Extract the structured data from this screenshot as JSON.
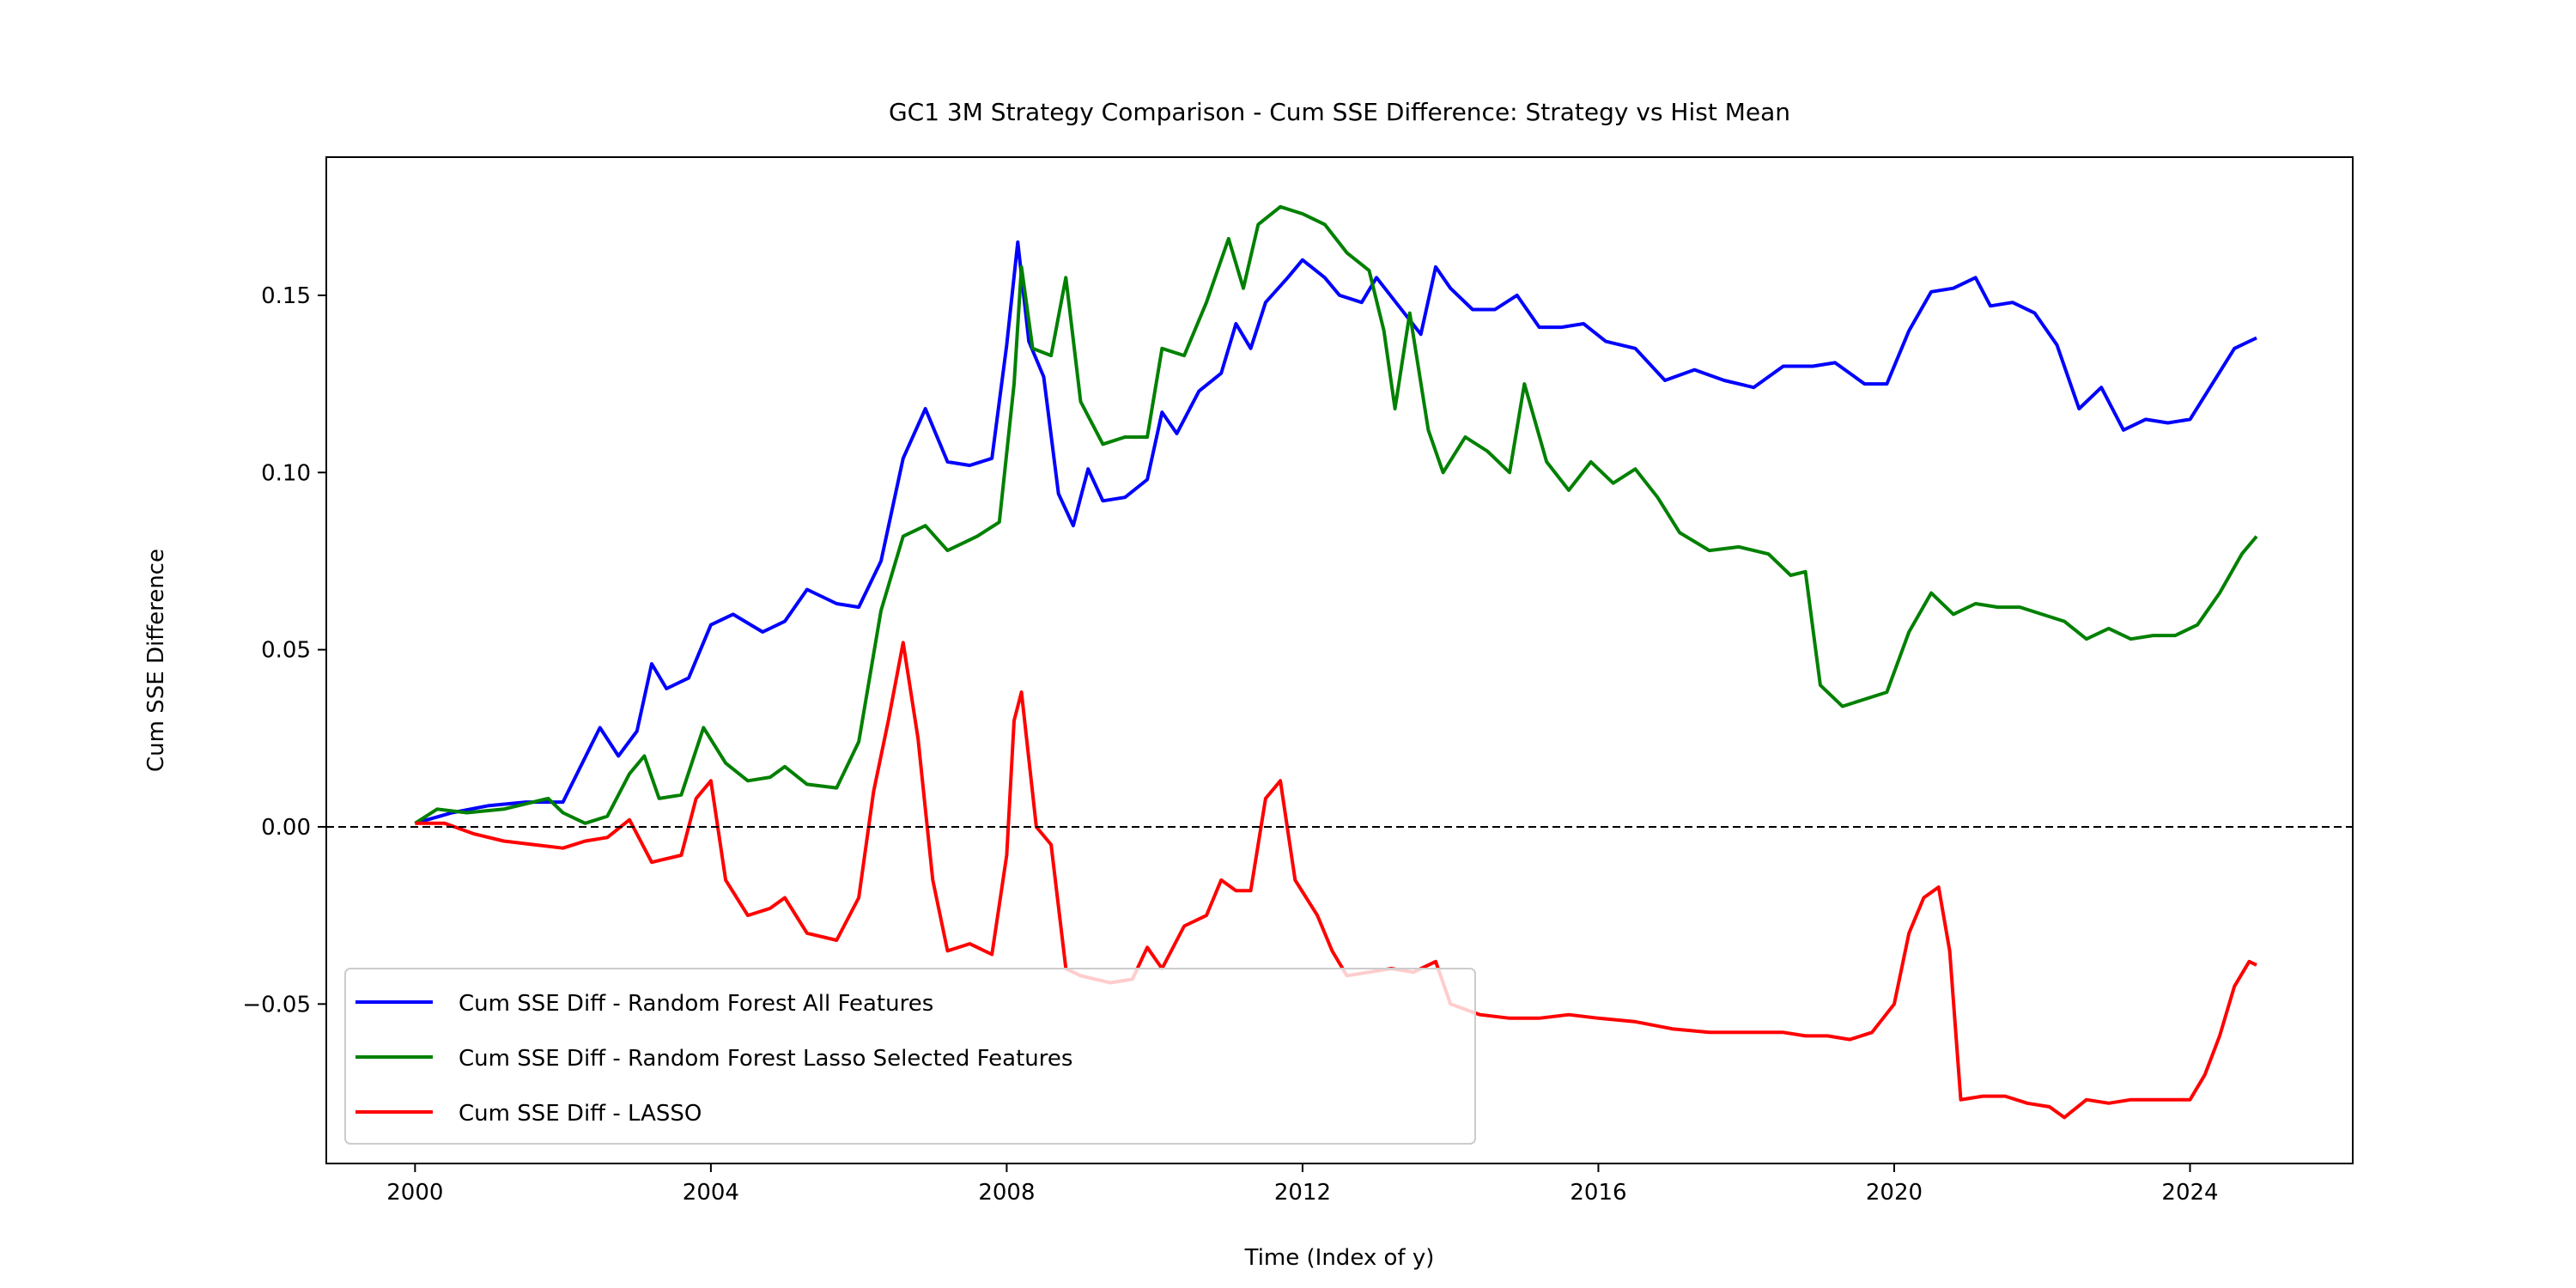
{
  "chart_data": {
    "type": "line",
    "title": "GC1 3M Strategy Comparison - Cum SSE Difference: Strategy vs Hist Mean",
    "xlabel": "Time (Index of y)",
    "ylabel": "Cum SSE Difference",
    "xlim": [
      1998.8,
      2026.2
    ],
    "ylim": [
      -0.095,
      0.189
    ],
    "x_ticks": [
      2000,
      2004,
      2008,
      2012,
      2016,
      2020,
      2024
    ],
    "y_ticks": [
      -0.05,
      0.0,
      0.05,
      0.1,
      0.15
    ],
    "y_tick_labels": [
      "−0.05",
      "0.00",
      "0.05",
      "0.10",
      "0.15"
    ],
    "reference_line": {
      "y": 0.0,
      "style": "dashed",
      "color": "#000000"
    },
    "grid": false,
    "legend_position": "lower-left",
    "series": [
      {
        "name": "Cum SSE Diff - Random Forest All Features",
        "color": "#0000ff",
        "points": [
          [
            2000.0,
            0.001
          ],
          [
            2000.5,
            0.004
          ],
          [
            2001.0,
            0.006
          ],
          [
            2001.5,
            0.007
          ],
          [
            2002.0,
            0.007
          ],
          [
            2002.5,
            0.028
          ],
          [
            2002.75,
            0.02
          ],
          [
            2003.0,
            0.027
          ],
          [
            2003.2,
            0.046
          ],
          [
            2003.4,
            0.039
          ],
          [
            2003.7,
            0.042
          ],
          [
            2004.0,
            0.057
          ],
          [
            2004.3,
            0.06
          ],
          [
            2004.7,
            0.055
          ],
          [
            2005.0,
            0.058
          ],
          [
            2005.3,
            0.067
          ],
          [
            2005.7,
            0.063
          ],
          [
            2006.0,
            0.062
          ],
          [
            2006.3,
            0.075
          ],
          [
            2006.6,
            0.104
          ],
          [
            2006.9,
            0.118
          ],
          [
            2007.2,
            0.103
          ],
          [
            2007.5,
            0.102
          ],
          [
            2007.8,
            0.104
          ],
          [
            2008.0,
            0.136
          ],
          [
            2008.15,
            0.165
          ],
          [
            2008.3,
            0.137
          ],
          [
            2008.5,
            0.127
          ],
          [
            2008.7,
            0.094
          ],
          [
            2008.9,
            0.085
          ],
          [
            2009.1,
            0.101
          ],
          [
            2009.3,
            0.092
          ],
          [
            2009.6,
            0.093
          ],
          [
            2009.9,
            0.098
          ],
          [
            2010.1,
            0.117
          ],
          [
            2010.3,
            0.111
          ],
          [
            2010.6,
            0.123
          ],
          [
            2010.9,
            0.128
          ],
          [
            2011.1,
            0.142
          ],
          [
            2011.3,
            0.135
          ],
          [
            2011.5,
            0.148
          ],
          [
            2011.8,
            0.155
          ],
          [
            2012.0,
            0.16
          ],
          [
            2012.3,
            0.155
          ],
          [
            2012.5,
            0.15
          ],
          [
            2012.8,
            0.148
          ],
          [
            2013.0,
            0.155
          ],
          [
            2013.3,
            0.147
          ],
          [
            2013.6,
            0.139
          ],
          [
            2013.8,
            0.158
          ],
          [
            2014.0,
            0.152
          ],
          [
            2014.3,
            0.146
          ],
          [
            2014.6,
            0.146
          ],
          [
            2014.9,
            0.15
          ],
          [
            2015.2,
            0.141
          ],
          [
            2015.5,
            0.141
          ],
          [
            2015.8,
            0.142
          ],
          [
            2016.1,
            0.137
          ],
          [
            2016.5,
            0.135
          ],
          [
            2016.9,
            0.126
          ],
          [
            2017.3,
            0.129
          ],
          [
            2017.7,
            0.126
          ],
          [
            2018.1,
            0.124
          ],
          [
            2018.5,
            0.13
          ],
          [
            2018.9,
            0.13
          ],
          [
            2019.2,
            0.131
          ],
          [
            2019.6,
            0.125
          ],
          [
            2019.9,
            0.125
          ],
          [
            2020.2,
            0.14
          ],
          [
            2020.5,
            0.151
          ],
          [
            2020.8,
            0.152
          ],
          [
            2021.1,
            0.155
          ],
          [
            2021.3,
            0.147
          ],
          [
            2021.6,
            0.148
          ],
          [
            2021.9,
            0.145
          ],
          [
            2022.2,
            0.136
          ],
          [
            2022.5,
            0.118
          ],
          [
            2022.8,
            0.124
          ],
          [
            2023.1,
            0.112
          ],
          [
            2023.4,
            0.115
          ],
          [
            2023.7,
            0.114
          ],
          [
            2024.0,
            0.115
          ],
          [
            2024.3,
            0.125
          ],
          [
            2024.6,
            0.135
          ],
          [
            2024.9,
            0.138
          ]
        ]
      },
      {
        "name": "Cum SSE Diff - Random Forest Lasso Selected Features",
        "color": "#008000",
        "points": [
          [
            2000.0,
            0.001
          ],
          [
            2000.3,
            0.005
          ],
          [
            2000.7,
            0.004
          ],
          [
            2001.2,
            0.005
          ],
          [
            2001.8,
            0.008
          ],
          [
            2002.0,
            0.004
          ],
          [
            2002.3,
            0.001
          ],
          [
            2002.6,
            0.003
          ],
          [
            2002.9,
            0.015
          ],
          [
            2003.1,
            0.02
          ],
          [
            2003.3,
            0.008
          ],
          [
            2003.6,
            0.009
          ],
          [
            2003.9,
            0.028
          ],
          [
            2004.2,
            0.018
          ],
          [
            2004.5,
            0.013
          ],
          [
            2004.8,
            0.014
          ],
          [
            2005.0,
            0.017
          ],
          [
            2005.3,
            0.012
          ],
          [
            2005.7,
            0.011
          ],
          [
            2006.0,
            0.024
          ],
          [
            2006.3,
            0.061
          ],
          [
            2006.6,
            0.082
          ],
          [
            2006.9,
            0.085
          ],
          [
            2007.2,
            0.078
          ],
          [
            2007.6,
            0.082
          ],
          [
            2007.9,
            0.086
          ],
          [
            2008.1,
            0.125
          ],
          [
            2008.2,
            0.158
          ],
          [
            2008.35,
            0.135
          ],
          [
            2008.6,
            0.133
          ],
          [
            2008.8,
            0.155
          ],
          [
            2009.0,
            0.12
          ],
          [
            2009.3,
            0.108
          ],
          [
            2009.6,
            0.11
          ],
          [
            2009.9,
            0.11
          ],
          [
            2010.1,
            0.135
          ],
          [
            2010.4,
            0.133
          ],
          [
            2010.7,
            0.148
          ],
          [
            2011.0,
            0.166
          ],
          [
            2011.2,
            0.152
          ],
          [
            2011.4,
            0.17
          ],
          [
            2011.7,
            0.175
          ],
          [
            2012.0,
            0.173
          ],
          [
            2012.3,
            0.17
          ],
          [
            2012.6,
            0.162
          ],
          [
            2012.9,
            0.157
          ],
          [
            2013.1,
            0.14
          ],
          [
            2013.25,
            0.118
          ],
          [
            2013.45,
            0.145
          ],
          [
            2013.7,
            0.112
          ],
          [
            2013.9,
            0.1
          ],
          [
            2014.2,
            0.11
          ],
          [
            2014.5,
            0.106
          ],
          [
            2014.8,
            0.1
          ],
          [
            2015.0,
            0.125
          ],
          [
            2015.3,
            0.103
          ],
          [
            2015.6,
            0.095
          ],
          [
            2015.9,
            0.103
          ],
          [
            2016.2,
            0.097
          ],
          [
            2016.5,
            0.101
          ],
          [
            2016.8,
            0.093
          ],
          [
            2017.1,
            0.083
          ],
          [
            2017.5,
            0.078
          ],
          [
            2017.9,
            0.079
          ],
          [
            2018.3,
            0.077
          ],
          [
            2018.6,
            0.071
          ],
          [
            2018.8,
            0.072
          ],
          [
            2019.0,
            0.04
          ],
          [
            2019.3,
            0.034
          ],
          [
            2019.6,
            0.036
          ],
          [
            2019.9,
            0.038
          ],
          [
            2020.2,
            0.055
          ],
          [
            2020.5,
            0.066
          ],
          [
            2020.8,
            0.06
          ],
          [
            2021.1,
            0.063
          ],
          [
            2021.4,
            0.062
          ],
          [
            2021.7,
            0.062
          ],
          [
            2022.0,
            0.06
          ],
          [
            2022.3,
            0.058
          ],
          [
            2022.6,
            0.053
          ],
          [
            2022.9,
            0.056
          ],
          [
            2023.2,
            0.053
          ],
          [
            2023.5,
            0.054
          ],
          [
            2023.8,
            0.054
          ],
          [
            2024.1,
            0.057
          ],
          [
            2024.4,
            0.066
          ],
          [
            2024.7,
            0.077
          ],
          [
            2024.9,
            0.082
          ]
        ]
      },
      {
        "name": "Cum SSE Diff - LASSO",
        "color": "#ff0000",
        "points": [
          [
            2000.0,
            0.001
          ],
          [
            2000.4,
            0.001
          ],
          [
            2000.8,
            -0.002
          ],
          [
            2001.2,
            -0.004
          ],
          [
            2001.6,
            -0.005
          ],
          [
            2002.0,
            -0.006
          ],
          [
            2002.3,
            -0.004
          ],
          [
            2002.6,
            -0.003
          ],
          [
            2002.9,
            0.002
          ],
          [
            2003.2,
            -0.01
          ],
          [
            2003.6,
            -0.008
          ],
          [
            2003.8,
            0.008
          ],
          [
            2004.0,
            0.013
          ],
          [
            2004.2,
            -0.015
          ],
          [
            2004.5,
            -0.025
          ],
          [
            2004.8,
            -0.023
          ],
          [
            2005.0,
            -0.02
          ],
          [
            2005.3,
            -0.03
          ],
          [
            2005.7,
            -0.032
          ],
          [
            2006.0,
            -0.02
          ],
          [
            2006.2,
            0.01
          ],
          [
            2006.4,
            0.03
          ],
          [
            2006.6,
            0.052
          ],
          [
            2006.8,
            0.025
          ],
          [
            2007.0,
            -0.015
          ],
          [
            2007.2,
            -0.035
          ],
          [
            2007.5,
            -0.033
          ],
          [
            2007.8,
            -0.036
          ],
          [
            2008.0,
            -0.008
          ],
          [
            2008.1,
            0.03
          ],
          [
            2008.2,
            0.038
          ],
          [
            2008.4,
            0.0
          ],
          [
            2008.6,
            -0.005
          ],
          [
            2008.8,
            -0.04
          ],
          [
            2009.0,
            -0.042
          ],
          [
            2009.4,
            -0.044
          ],
          [
            2009.7,
            -0.043
          ],
          [
            2009.9,
            -0.034
          ],
          [
            2010.1,
            -0.04
          ],
          [
            2010.4,
            -0.028
          ],
          [
            2010.7,
            -0.025
          ],
          [
            2010.9,
            -0.015
          ],
          [
            2011.1,
            -0.018
          ],
          [
            2011.3,
            -0.018
          ],
          [
            2011.5,
            0.008
          ],
          [
            2011.7,
            0.013
          ],
          [
            2011.9,
            -0.015
          ],
          [
            2012.2,
            -0.025
          ],
          [
            2012.4,
            -0.035
          ],
          [
            2012.6,
            -0.042
          ],
          [
            2012.9,
            -0.041
          ],
          [
            2013.2,
            -0.04
          ],
          [
            2013.5,
            -0.041
          ],
          [
            2013.8,
            -0.038
          ],
          [
            2014.0,
            -0.05
          ],
          [
            2014.4,
            -0.053
          ],
          [
            2014.8,
            -0.054
          ],
          [
            2015.2,
            -0.054
          ],
          [
            2015.6,
            -0.053
          ],
          [
            2016.0,
            -0.054
          ],
          [
            2016.5,
            -0.055
          ],
          [
            2017.0,
            -0.057
          ],
          [
            2017.5,
            -0.058
          ],
          [
            2018.0,
            -0.058
          ],
          [
            2018.5,
            -0.058
          ],
          [
            2018.8,
            -0.059
          ],
          [
            2019.1,
            -0.059
          ],
          [
            2019.4,
            -0.06
          ],
          [
            2019.7,
            -0.058
          ],
          [
            2020.0,
            -0.05
          ],
          [
            2020.2,
            -0.03
          ],
          [
            2020.4,
            -0.02
          ],
          [
            2020.6,
            -0.017
          ],
          [
            2020.75,
            -0.035
          ],
          [
            2020.9,
            -0.077
          ],
          [
            2021.2,
            -0.076
          ],
          [
            2021.5,
            -0.076
          ],
          [
            2021.8,
            -0.078
          ],
          [
            2022.1,
            -0.079
          ],
          [
            2022.3,
            -0.082
          ],
          [
            2022.6,
            -0.077
          ],
          [
            2022.9,
            -0.078
          ],
          [
            2023.2,
            -0.077
          ],
          [
            2023.6,
            -0.077
          ],
          [
            2024.0,
            -0.077
          ],
          [
            2024.2,
            -0.07
          ],
          [
            2024.4,
            -0.059
          ],
          [
            2024.6,
            -0.045
          ],
          [
            2024.8,
            -0.038
          ],
          [
            2024.9,
            -0.039
          ]
        ]
      }
    ]
  }
}
